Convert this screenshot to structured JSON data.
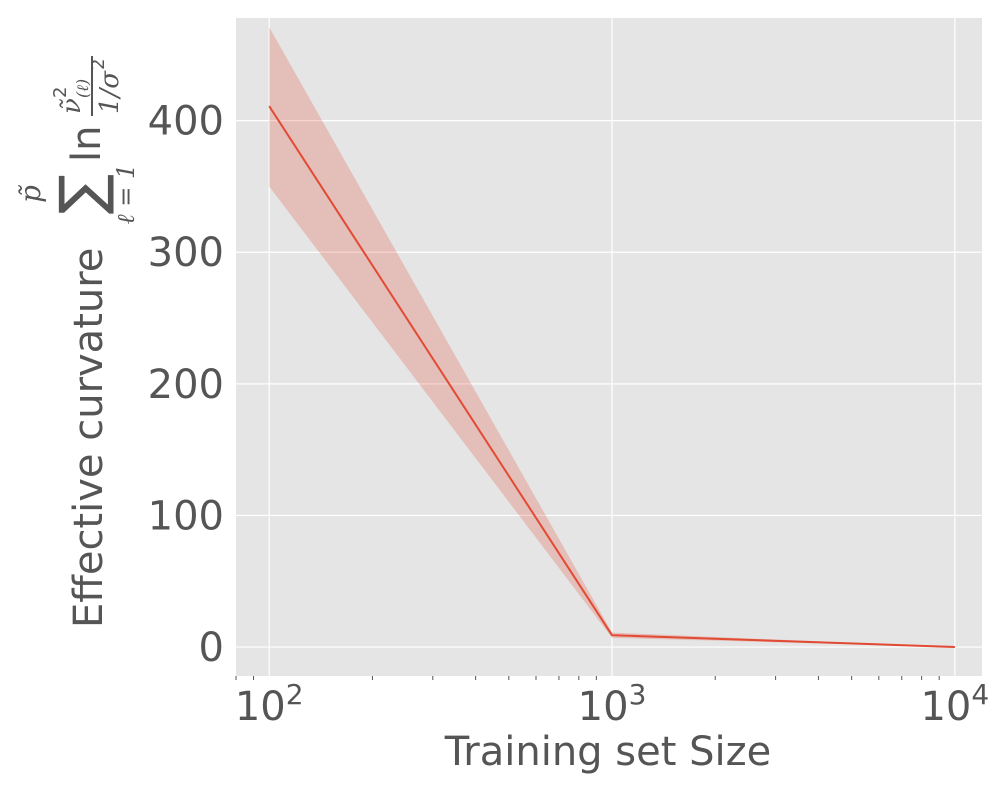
{
  "chart_data": {
    "type": "line",
    "title": "",
    "xlabel": "Training set Size",
    "ylabel": "Effective curvature",
    "ylabel_math": {
      "sum_upper": "p̃",
      "sum_lower": "ℓ = 1",
      "sum_symbol": "∑",
      "ln": "ln",
      "numerator": "ν̃",
      "numerator_sup": "2",
      "numerator_sub": "(ℓ)",
      "denominator": "1/σ",
      "denominator_sup": "2"
    },
    "x_scale": "log",
    "xlim": [
      80,
      12000
    ],
    "ylim": [
      -22,
      478
    ],
    "x_ticks": [
      100,
      1000,
      10000
    ],
    "x_tick_labels": [
      {
        "base": "10",
        "exp": "2"
      },
      {
        "base": "10",
        "exp": "3"
      },
      {
        "base": "10",
        "exp": "4"
      }
    ],
    "y_ticks": [
      0,
      100,
      200,
      300,
      400
    ],
    "y_tick_labels": [
      "0",
      "100",
      "200",
      "300",
      "400"
    ],
    "grid": true,
    "series": [
      {
        "x": [
          100,
          1000,
          10000
        ],
        "y": [
          411,
          9,
          0
        ],
        "y_lower": [
          350,
          7,
          0
        ],
        "y_upper": [
          471,
          11,
          0
        ],
        "color": "#e24a33",
        "band_color": "#e24a33",
        "band_opacity": 0.25
      }
    ]
  },
  "style": {
    "plot_background": "#e5e5e5",
    "grid_color": "#ffffff",
    "text_color": "#555555"
  }
}
